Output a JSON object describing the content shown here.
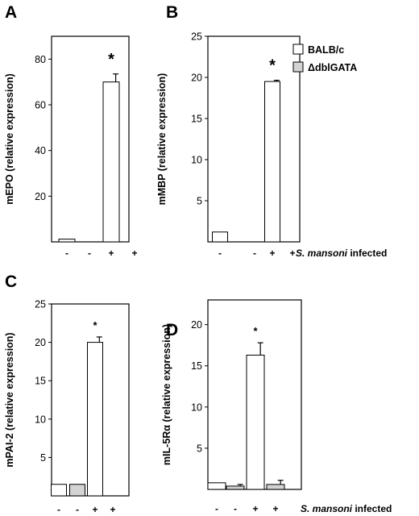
{
  "legend": {
    "items": [
      {
        "label": "BALB/c",
        "color": "#ffffff"
      },
      {
        "label": "ΔdblGATA",
        "color": "#d3d3d3"
      }
    ]
  },
  "chart_data": [
    {
      "panel": "A",
      "type": "bar",
      "ylabel": "mEPO (relative expression)",
      "ylim": [
        0,
        90
      ],
      "yticks": [
        20,
        40,
        60,
        80
      ],
      "categories": [
        "-",
        "-",
        "+",
        "+"
      ],
      "values": [
        1.2,
        0,
        70,
        0
      ],
      "errors": [
        0,
        0,
        3.5,
        0
      ],
      "colors": [
        "#ffffff",
        "#d3d3d3",
        "#ffffff",
        "#d3d3d3"
      ],
      "significance": [
        "",
        "",
        "*",
        ""
      ],
      "infected_label": ""
    },
    {
      "panel": "B",
      "type": "bar",
      "ylabel": "mMBP (relative expression)",
      "ylim": [
        0,
        25
      ],
      "yticks": [
        5,
        10,
        15,
        20,
        25
      ],
      "categories": [
        "-",
        "-",
        "+",
        "+"
      ],
      "values": [
        1.2,
        0,
        19.5,
        0
      ],
      "errors": [
        0,
        0,
        0.15,
        0
      ],
      "colors": [
        "#ffffff",
        "#d3d3d3",
        "#ffffff",
        "#d3d3d3"
      ],
      "significance": [
        "",
        "",
        "*",
        ""
      ],
      "infected_label": {
        "species": "S. mansoni",
        "suffix": " infected"
      }
    },
    {
      "panel": "C",
      "type": "bar",
      "ylabel": "mPAI-2 (relative expression)",
      "ylim": [
        0,
        25
      ],
      "yticks": [
        5,
        10,
        15,
        20,
        25
      ],
      "categories": [
        "-",
        "-",
        "+",
        "+"
      ],
      "values": [
        1.5,
        1.5,
        20.0,
        0
      ],
      "errors": [
        0,
        0,
        0.7,
        0
      ],
      "colors": [
        "#ffffff",
        "#d3d3d3",
        "#ffffff",
        "#d3d3d3"
      ],
      "significance": [
        "",
        "",
        "*",
        ""
      ],
      "infected_label": ""
    },
    {
      "panel": "D",
      "type": "bar",
      "ylabel": "mIL-5Rα (relative expression)",
      "ylim": [
        0,
        23
      ],
      "yticks": [
        5,
        10,
        15,
        20
      ],
      "categories": [
        "-",
        "-",
        "+",
        "+"
      ],
      "values": [
        0.8,
        0.4,
        16.3,
        0.6
      ],
      "errors": [
        0,
        0.2,
        1.5,
        0.5
      ],
      "colors": [
        "#ffffff",
        "#d3d3d3",
        "#ffffff",
        "#d3d3d3"
      ],
      "significance": [
        "",
        "",
        "*",
        ""
      ],
      "infected_label": {
        "species": "S. mansoni",
        "suffix": " infected"
      }
    }
  ]
}
